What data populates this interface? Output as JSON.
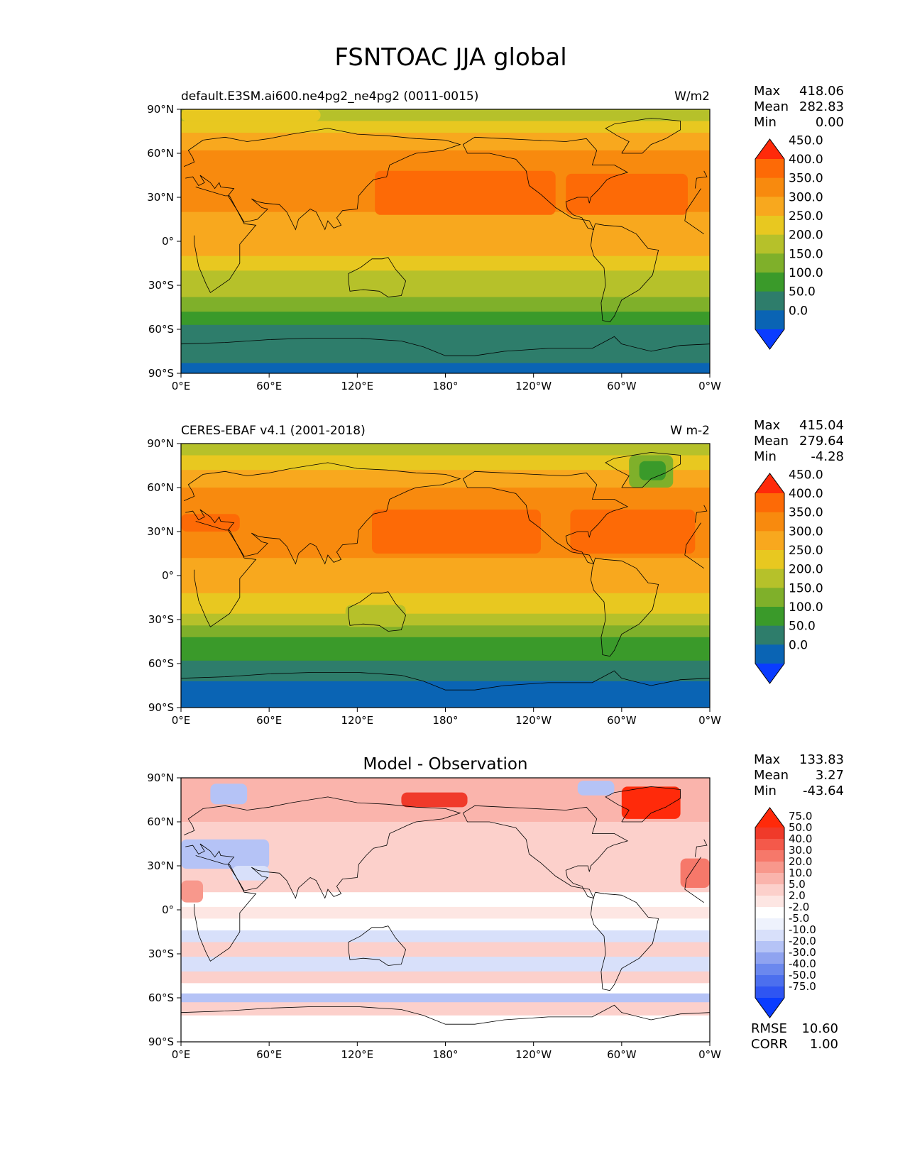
{
  "figure_title": "FSNTOAC JJA global",
  "chart_data": [
    {
      "type": "heatmap",
      "panel": "test",
      "title_left": "default.E3SM.ai600.ne4pg2_ne4pg2 (0011-0015)",
      "title_right": "W/m2",
      "title_center": "",
      "stats": {
        "max_label": "Max",
        "max": "418.06",
        "mean_label": "Mean",
        "mean": "282.83",
        "min_label": "Min",
        "min": "0.00"
      },
      "colorbar": {
        "levels": [
          "0.0",
          "50.0",
          "100.0",
          "150.0",
          "200.0",
          "250.0",
          "300.0",
          "350.0",
          "400.0",
          "450.0"
        ],
        "colors": [
          "#0a3cff",
          "#0a64b4",
          "#2e7d6b",
          "#3a9a2a",
          "#7fb02a",
          "#b6c12a",
          "#e8c820",
          "#f8a81e",
          "#f88a0e",
          "#fd6a06",
          "#ff2a0a"
        ]
      },
      "bands": [
        {
          "lat_top": 90,
          "lat_bottom": 82,
          "value": 225
        },
        {
          "lat_top": 82,
          "lat_bottom": 74,
          "value": 280
        },
        {
          "lat_top": 74,
          "lat_bottom": 62,
          "value": 345
        },
        {
          "lat_top": 62,
          "lat_bottom": 20,
          "value": 375
        },
        {
          "lat_top": 20,
          "lat_bottom": 12,
          "value": 340
        },
        {
          "lat_top": 12,
          "lat_bottom": -2,
          "value": 325
        },
        {
          "lat_top": -2,
          "lat_bottom": -10,
          "value": 305
        },
        {
          "lat_top": -10,
          "lat_bottom": -20,
          "value": 275
        },
        {
          "lat_top": -20,
          "lat_bottom": -28,
          "value": 240
        },
        {
          "lat_top": -28,
          "lat_bottom": -38,
          "value": 205
        },
        {
          "lat_top": -38,
          "lat_bottom": -48,
          "value": 165
        },
        {
          "lat_top": -48,
          "lat_bottom": -57,
          "value": 120
        },
        {
          "lat_top": -57,
          "lat_bottom": -83,
          "value": 75
        },
        {
          "lat_top": -83,
          "lat_bottom": -90,
          "value": 20
        }
      ],
      "patches": [
        {
          "lon_min": 132,
          "lon_max": 255,
          "lat_min": 18,
          "lat_max": 48,
          "value": 415
        },
        {
          "lon_min": 262,
          "lon_max": 345,
          "lat_min": 18,
          "lat_max": 46,
          "value": 415
        },
        {
          "lon_min": 0,
          "lon_max": 95,
          "lat_min": 82,
          "lat_max": 90,
          "value": 275
        }
      ]
    },
    {
      "type": "heatmap",
      "panel": "reference",
      "title_left": "CERES-EBAF v4.1 (2001-2018)",
      "title_right": "W m-2",
      "title_center": "",
      "stats": {
        "max_label": "Max",
        "max": "415.04",
        "mean_label": "Mean",
        "mean": "279.64",
        "min_label": "Min",
        "min": "-4.28"
      },
      "colorbar": {
        "levels": [
          "0.0",
          "50.0",
          "100.0",
          "150.0",
          "200.0",
          "250.0",
          "300.0",
          "350.0",
          "400.0",
          "450.0"
        ],
        "colors": [
          "#0a3cff",
          "#0a64b4",
          "#2e7d6b",
          "#3a9a2a",
          "#7fb02a",
          "#b6c12a",
          "#e8c820",
          "#f8a81e",
          "#f88a0e",
          "#fd6a06",
          "#ff2a0a"
        ]
      },
      "bands": [
        {
          "lat_top": 90,
          "lat_bottom": 82,
          "value": 225
        },
        {
          "lat_top": 82,
          "lat_bottom": 72,
          "value": 280
        },
        {
          "lat_top": 72,
          "lat_bottom": 60,
          "value": 335
        },
        {
          "lat_top": 60,
          "lat_bottom": 12,
          "value": 375
        },
        {
          "lat_top": 12,
          "lat_bottom": 0,
          "value": 340
        },
        {
          "lat_top": 0,
          "lat_bottom": -12,
          "value": 320
        },
        {
          "lat_top": -12,
          "lat_bottom": -20,
          "value": 290
        },
        {
          "lat_top": -20,
          "lat_bottom": -26,
          "value": 255
        },
        {
          "lat_top": -26,
          "lat_bottom": -34,
          "value": 225
        },
        {
          "lat_top": -34,
          "lat_bottom": -42,
          "value": 180
        },
        {
          "lat_top": -42,
          "lat_bottom": -50,
          "value": 140
        },
        {
          "lat_top": -50,
          "lat_bottom": -58,
          "value": 110
        },
        {
          "lat_top": -58,
          "lat_bottom": -72,
          "value": 75
        },
        {
          "lat_top": -72,
          "lat_bottom": -90,
          "value": 25
        }
      ],
      "patches": [
        {
          "lon_min": 130,
          "lon_max": 245,
          "lat_min": 15,
          "lat_max": 45,
          "value": 415
        },
        {
          "lon_min": 265,
          "lon_max": 350,
          "lat_min": 15,
          "lat_max": 45,
          "value": 415
        },
        {
          "lon_min": 0,
          "lon_max": 40,
          "lat_min": 30,
          "lat_max": 42,
          "value": 415
        },
        {
          "lon_min": 305,
          "lon_max": 335,
          "lat_min": 60,
          "lat_max": 82,
          "value": 180
        },
        {
          "lon_min": 312,
          "lon_max": 330,
          "lat_min": 65,
          "lat_max": 78,
          "value": 130
        },
        {
          "lon_min": 112,
          "lon_max": 153,
          "lat_min": -35,
          "lat_max": -20,
          "value": 205
        }
      ]
    },
    {
      "type": "heatmap",
      "panel": "difference",
      "title_left": "",
      "title_right": "",
      "title_center": "Model - Observation",
      "stats": {
        "max_label": "Max",
        "max": "133.83",
        "mean_label": "Mean",
        "mean": "3.27",
        "min_label": "Min",
        "min": "-43.64"
      },
      "colorbar": {
        "levels": [
          "-75.0",
          "-50.0",
          "-40.0",
          "-30.0",
          "-20.0",
          "-10.0",
          "-5.0",
          "-2.0",
          "2.0",
          "5.0",
          "10.0",
          "20.0",
          "30.0",
          "40.0",
          "50.0",
          "75.0"
        ],
        "colors": [
          "#0a3cff",
          "#2f55f2",
          "#4c6fee",
          "#6b88ee",
          "#8fa3f0",
          "#b5c3f6",
          "#d8e0fa",
          "#eef2fd",
          "#ffffff",
          "#fde6e3",
          "#fcd0cb",
          "#fab4ac",
          "#f8988c",
          "#f6786a",
          "#f4594a",
          "#f03a2a",
          "#ff2a0a"
        ]
      },
      "bands": [
        {
          "lat_top": 90,
          "lat_bottom": 60,
          "value": 12
        },
        {
          "lat_top": 60,
          "lat_bottom": 35,
          "value": 8
        },
        {
          "lat_top": 35,
          "lat_bottom": 12,
          "value": 6
        },
        {
          "lat_top": 12,
          "lat_bottom": 2,
          "value": 0
        },
        {
          "lat_top": 2,
          "lat_bottom": -6,
          "value": 4
        },
        {
          "lat_top": -6,
          "lat_bottom": -14,
          "value": 0
        },
        {
          "lat_top": -14,
          "lat_bottom": -22,
          "value": -7
        },
        {
          "lat_top": -22,
          "lat_bottom": -32,
          "value": 6
        },
        {
          "lat_top": -32,
          "lat_bottom": -42,
          "value": -6
        },
        {
          "lat_top": -42,
          "lat_bottom": -50,
          "value": 6
        },
        {
          "lat_top": -50,
          "lat_bottom": -57,
          "value": 0
        },
        {
          "lat_top": -57,
          "lat_bottom": -63,
          "value": -12
        },
        {
          "lat_top": -63,
          "lat_bottom": -72,
          "value": 6
        },
        {
          "lat_top": -72,
          "lat_bottom": -90,
          "value": 0
        }
      ],
      "patches": [
        {
          "lon_min": 150,
          "lon_max": 195,
          "lat_min": 70,
          "lat_max": 80,
          "value": 60
        },
        {
          "lon_min": 300,
          "lon_max": 340,
          "lat_min": 62,
          "lat_max": 84,
          "value": 90
        },
        {
          "lon_min": 270,
          "lon_max": 295,
          "lat_min": 78,
          "lat_max": 88,
          "value": -15
        },
        {
          "lon_min": 340,
          "lon_max": 360,
          "lat_min": 15,
          "lat_max": 35,
          "value": 32
        },
        {
          "lon_min": 0,
          "lon_max": 60,
          "lat_min": 28,
          "lat_max": 48,
          "value": -12
        },
        {
          "lon_min": 20,
          "lon_max": 45,
          "lat_min": 72,
          "lat_max": 86,
          "value": -15
        },
        {
          "lon_min": 35,
          "lon_max": 60,
          "lat_min": 20,
          "lat_max": 30,
          "value": -8
        },
        {
          "lon_min": 0,
          "lon_max": 15,
          "lat_min": 5,
          "lat_max": 20,
          "value": 20
        },
        {
          "lon_min": 265,
          "lon_max": 310,
          "lat_min": -57,
          "lat_max": -63,
          "value": -25
        },
        {
          "lon_min": 45,
          "lon_max": 100,
          "lat_min": -57,
          "lat_max": -63,
          "value": -25
        }
      ]
    }
  ],
  "rmse_label": "RMSE",
  "rmse": "10.60",
  "corr_label": "CORR",
  "corr": "1.00",
  "lat_ticks": [
    "90°N",
    "60°N",
    "30°N",
    "0°",
    "30°S",
    "60°S",
    "90°S"
  ],
  "lon_ticks": [
    "0°E",
    "60°E",
    "120°E",
    "180°",
    "120°W",
    "60°W",
    "0°W"
  ],
  "coastline_color": "#000000"
}
